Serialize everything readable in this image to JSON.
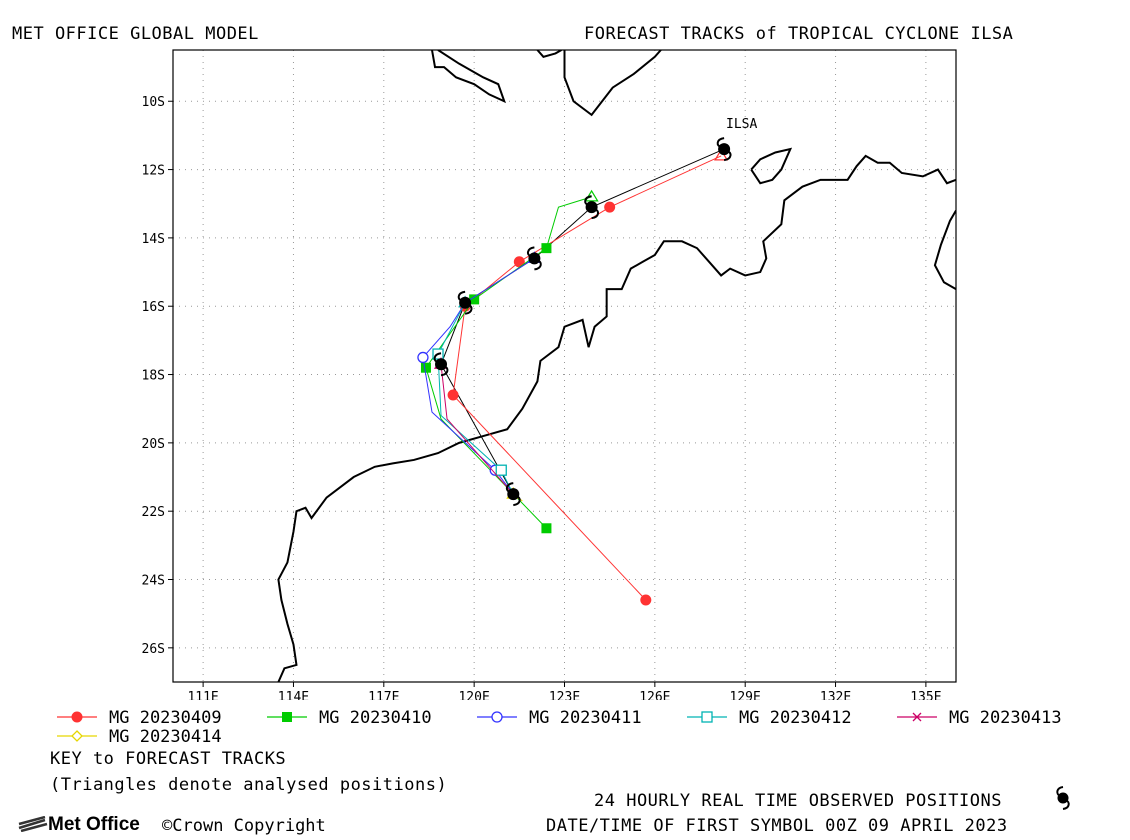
{
  "header": {
    "left_title": "MET OFFICE GLOBAL MODEL",
    "right_title": "FORECAST TRACKS of TROPICAL CYCLONE ILSA"
  },
  "chart_data": {
    "type": "line",
    "storm_label": "ILSA",
    "xlabel": "",
    "ylabel": "",
    "xlim": [
      110,
      136
    ],
    "ylim": [
      -27,
      -8.5
    ],
    "grid": true,
    "x_ticks": [
      {
        "value": 111,
        "label": "111E"
      },
      {
        "value": 114,
        "label": "114E"
      },
      {
        "value": 117,
        "label": "117E"
      },
      {
        "value": 120,
        "label": "120E"
      },
      {
        "value": 123,
        "label": "123E"
      },
      {
        "value": 126,
        "label": "126E"
      },
      {
        "value": 129,
        "label": "129E"
      },
      {
        "value": 132,
        "label": "132E"
      },
      {
        "value": 135,
        "label": "135E"
      }
    ],
    "y_ticks": [
      {
        "value": -10,
        "label": "10S"
      },
      {
        "value": -12,
        "label": "12S"
      },
      {
        "value": -14,
        "label": "14S"
      },
      {
        "value": -16,
        "label": "16S"
      },
      {
        "value": -18,
        "label": "18S"
      },
      {
        "value": -20,
        "label": "20S"
      },
      {
        "value": -22,
        "label": "22S"
      },
      {
        "value": -24,
        "label": "24S"
      },
      {
        "value": -26,
        "label": "26S"
      }
    ],
    "observed": [
      [
        128.3,
        -11.4
      ],
      [
        123.9,
        -13.1
      ],
      [
        122.0,
        -14.6
      ],
      [
        119.7,
        -15.9
      ],
      [
        118.9,
        -17.7
      ],
      [
        121.3,
        -21.5
      ]
    ],
    "series": [
      {
        "name": "MG 20230409",
        "color": "#ff3333",
        "marker": "circle-filled",
        "points": [
          [
            128.2,
            -11.6
          ],
          [
            124.5,
            -13.1
          ],
          [
            121.5,
            -14.7
          ],
          [
            119.7,
            -16.0
          ],
          [
            119.3,
            -18.6
          ],
          [
            125.7,
            -24.6
          ]
        ],
        "marker_indices": [
          1,
          2,
          3,
          4,
          5
        ]
      },
      {
        "name": "MG 20230410",
        "color": "#00cc00",
        "marker": "square-filled",
        "points": [
          [
            123.9,
            -12.8
          ],
          [
            122.8,
            -13.1
          ],
          [
            122.4,
            -14.3
          ],
          [
            120.0,
            -15.8
          ],
          [
            118.4,
            -17.8
          ],
          [
            118.9,
            -19.3
          ],
          [
            122.4,
            -22.5
          ]
        ],
        "marker_indices": [
          2,
          3,
          4,
          6
        ]
      },
      {
        "name": "MG 20230411",
        "color": "#3333ff",
        "marker": "circle-open",
        "points": [
          [
            122.0,
            -14.6
          ],
          [
            119.7,
            -15.9
          ],
          [
            119.2,
            -16.6
          ],
          [
            118.3,
            -17.5
          ],
          [
            118.6,
            -19.1
          ],
          [
            120.7,
            -20.8
          ],
          [
            121.3,
            -21.5
          ]
        ],
        "marker_indices": [
          3,
          5
        ]
      },
      {
        "name": "MG 20230412",
        "color": "#00b3b3",
        "marker": "square-open",
        "points": [
          [
            119.7,
            -15.9
          ],
          [
            118.8,
            -17.4
          ],
          [
            118.9,
            -19.2
          ],
          [
            120.9,
            -20.8
          ],
          [
            121.3,
            -21.5
          ]
        ],
        "marker_indices": [
          1,
          3
        ]
      },
      {
        "name": "MG 20230413",
        "color": "#cc0066",
        "marker": "x",
        "points": [
          [
            118.9,
            -17.7
          ],
          [
            119.1,
            -19.3
          ],
          [
            121.3,
            -21.5
          ]
        ],
        "marker_indices": []
      },
      {
        "name": "MG 20230414",
        "color": "#e6d600",
        "marker": "diamond-open",
        "points": [
          [
            121.3,
            -21.5
          ],
          [
            121.6,
            -21.7
          ]
        ],
        "marker_indices": []
      }
    ],
    "coastline_lonlat": [
      [
        [
          113.5,
          -27.0
        ],
        [
          113.7,
          -26.6
        ],
        [
          114.1,
          -26.5
        ],
        [
          114.0,
          -25.9
        ],
        [
          113.8,
          -25.3
        ],
        [
          113.6,
          -24.6
        ],
        [
          113.5,
          -24.0
        ],
        [
          113.8,
          -23.5
        ],
        [
          114.0,
          -22.6
        ],
        [
          114.1,
          -22.0
        ],
        [
          114.4,
          -21.9
        ],
        [
          114.6,
          -22.2
        ],
        [
          115.1,
          -21.6
        ],
        [
          116.0,
          -21.0
        ],
        [
          116.7,
          -20.7
        ],
        [
          117.3,
          -20.6
        ],
        [
          118.0,
          -20.5
        ],
        [
          118.8,
          -20.3
        ],
        [
          119.5,
          -20.0
        ],
        [
          120.3,
          -19.8
        ],
        [
          121.1,
          -19.6
        ],
        [
          121.6,
          -19.0
        ],
        [
          122.1,
          -18.2
        ],
        [
          122.2,
          -17.6
        ],
        [
          122.8,
          -17.2
        ],
        [
          123.0,
          -16.6
        ],
        [
          123.6,
          -16.4
        ],
        [
          123.8,
          -17.2
        ],
        [
          124.0,
          -16.6
        ],
        [
          124.4,
          -16.3
        ],
        [
          124.4,
          -15.5
        ],
        [
          124.9,
          -15.5
        ],
        [
          125.2,
          -14.9
        ],
        [
          125.6,
          -14.7
        ],
        [
          126.0,
          -14.5
        ],
        [
          126.3,
          -14.1
        ],
        [
          126.9,
          -14.1
        ],
        [
          127.4,
          -14.3
        ],
        [
          127.9,
          -14.8
        ],
        [
          128.2,
          -15.1
        ],
        [
          128.5,
          -14.9
        ],
        [
          129.0,
          -15.1
        ],
        [
          129.5,
          -15.0
        ],
        [
          129.7,
          -14.6
        ],
        [
          129.6,
          -14.1
        ],
        [
          130.2,
          -13.6
        ],
        [
          130.3,
          -12.9
        ],
        [
          130.9,
          -12.5
        ],
        [
          131.5,
          -12.3
        ],
        [
          132.4,
          -12.3
        ],
        [
          132.7,
          -11.9
        ],
        [
          133.0,
          -11.6
        ],
        [
          133.4,
          -11.8
        ],
        [
          133.8,
          -11.8
        ],
        [
          134.2,
          -12.1
        ],
        [
          134.9,
          -12.2
        ],
        [
          135.4,
          -12.0
        ],
        [
          135.7,
          -12.4
        ],
        [
          136.0,
          -12.3
        ]
      ],
      [
        [
          136.0,
          -15.5
        ],
        [
          135.6,
          -15.3
        ],
        [
          135.3,
          -14.8
        ],
        [
          135.5,
          -14.2
        ],
        [
          135.8,
          -13.5
        ],
        [
          136.0,
          -13.2
        ]
      ],
      [
        [
          118.6,
          -8.5
        ],
        [
          118.7,
          -9.0
        ],
        [
          119.0,
          -9.0
        ],
        [
          119.4,
          -9.3
        ],
        [
          120.0,
          -9.5
        ],
        [
          120.5,
          -9.8
        ],
        [
          121.0,
          -10.0
        ],
        [
          120.8,
          -9.5
        ],
        [
          120.3,
          -9.3
        ],
        [
          119.5,
          -8.9
        ],
        [
          118.8,
          -8.5
        ]
      ],
      [
        [
          123.0,
          -8.5
        ],
        [
          123.0,
          -9.3
        ],
        [
          123.3,
          -10.0
        ],
        [
          123.9,
          -10.4
        ],
        [
          124.6,
          -9.6
        ],
        [
          125.3,
          -9.2
        ],
        [
          126.0,
          -8.7
        ],
        [
          126.2,
          -8.5
        ]
      ],
      [
        [
          129.2,
          -12.0
        ],
        [
          129.5,
          -12.4
        ],
        [
          129.9,
          -12.3
        ],
        [
          130.2,
          -12.0
        ],
        [
          130.5,
          -11.4
        ],
        [
          130.0,
          -11.5
        ],
        [
          129.5,
          -11.7
        ],
        [
          129.2,
          -12.0
        ]
      ],
      [
        [
          122.1,
          -8.5
        ],
        [
          122.3,
          -8.7
        ],
        [
          122.7,
          -8.6
        ],
        [
          122.9,
          -8.5
        ]
      ]
    ]
  },
  "legend": {
    "items": [
      {
        "label": "MG 20230409",
        "color": "#ff3333",
        "marker": "circle-filled"
      },
      {
        "label": "MG 20230410",
        "color": "#00cc00",
        "marker": "square-filled"
      },
      {
        "label": "MG 20230411",
        "color": "#3333ff",
        "marker": "circle-open"
      },
      {
        "label": "MG 20230412",
        "color": "#00b3b3",
        "marker": "square-open"
      },
      {
        "label": "MG 20230413",
        "color": "#cc0066",
        "marker": "x"
      },
      {
        "label": "MG 20230414",
        "color": "#e6d600",
        "marker": "diamond-open"
      }
    ],
    "key_title": "KEY to FORECAST TRACKS",
    "note": "(Triangles denote analysed positions)"
  },
  "footer": {
    "observed_label": "24 HOURLY REAL TIME OBSERVED POSITIONS",
    "datetime": "DATE/TIME OF FIRST SYMBOL 00Z 09 APRIL 2023",
    "logo": "Met Office",
    "copyright": "Crown Copyright"
  }
}
